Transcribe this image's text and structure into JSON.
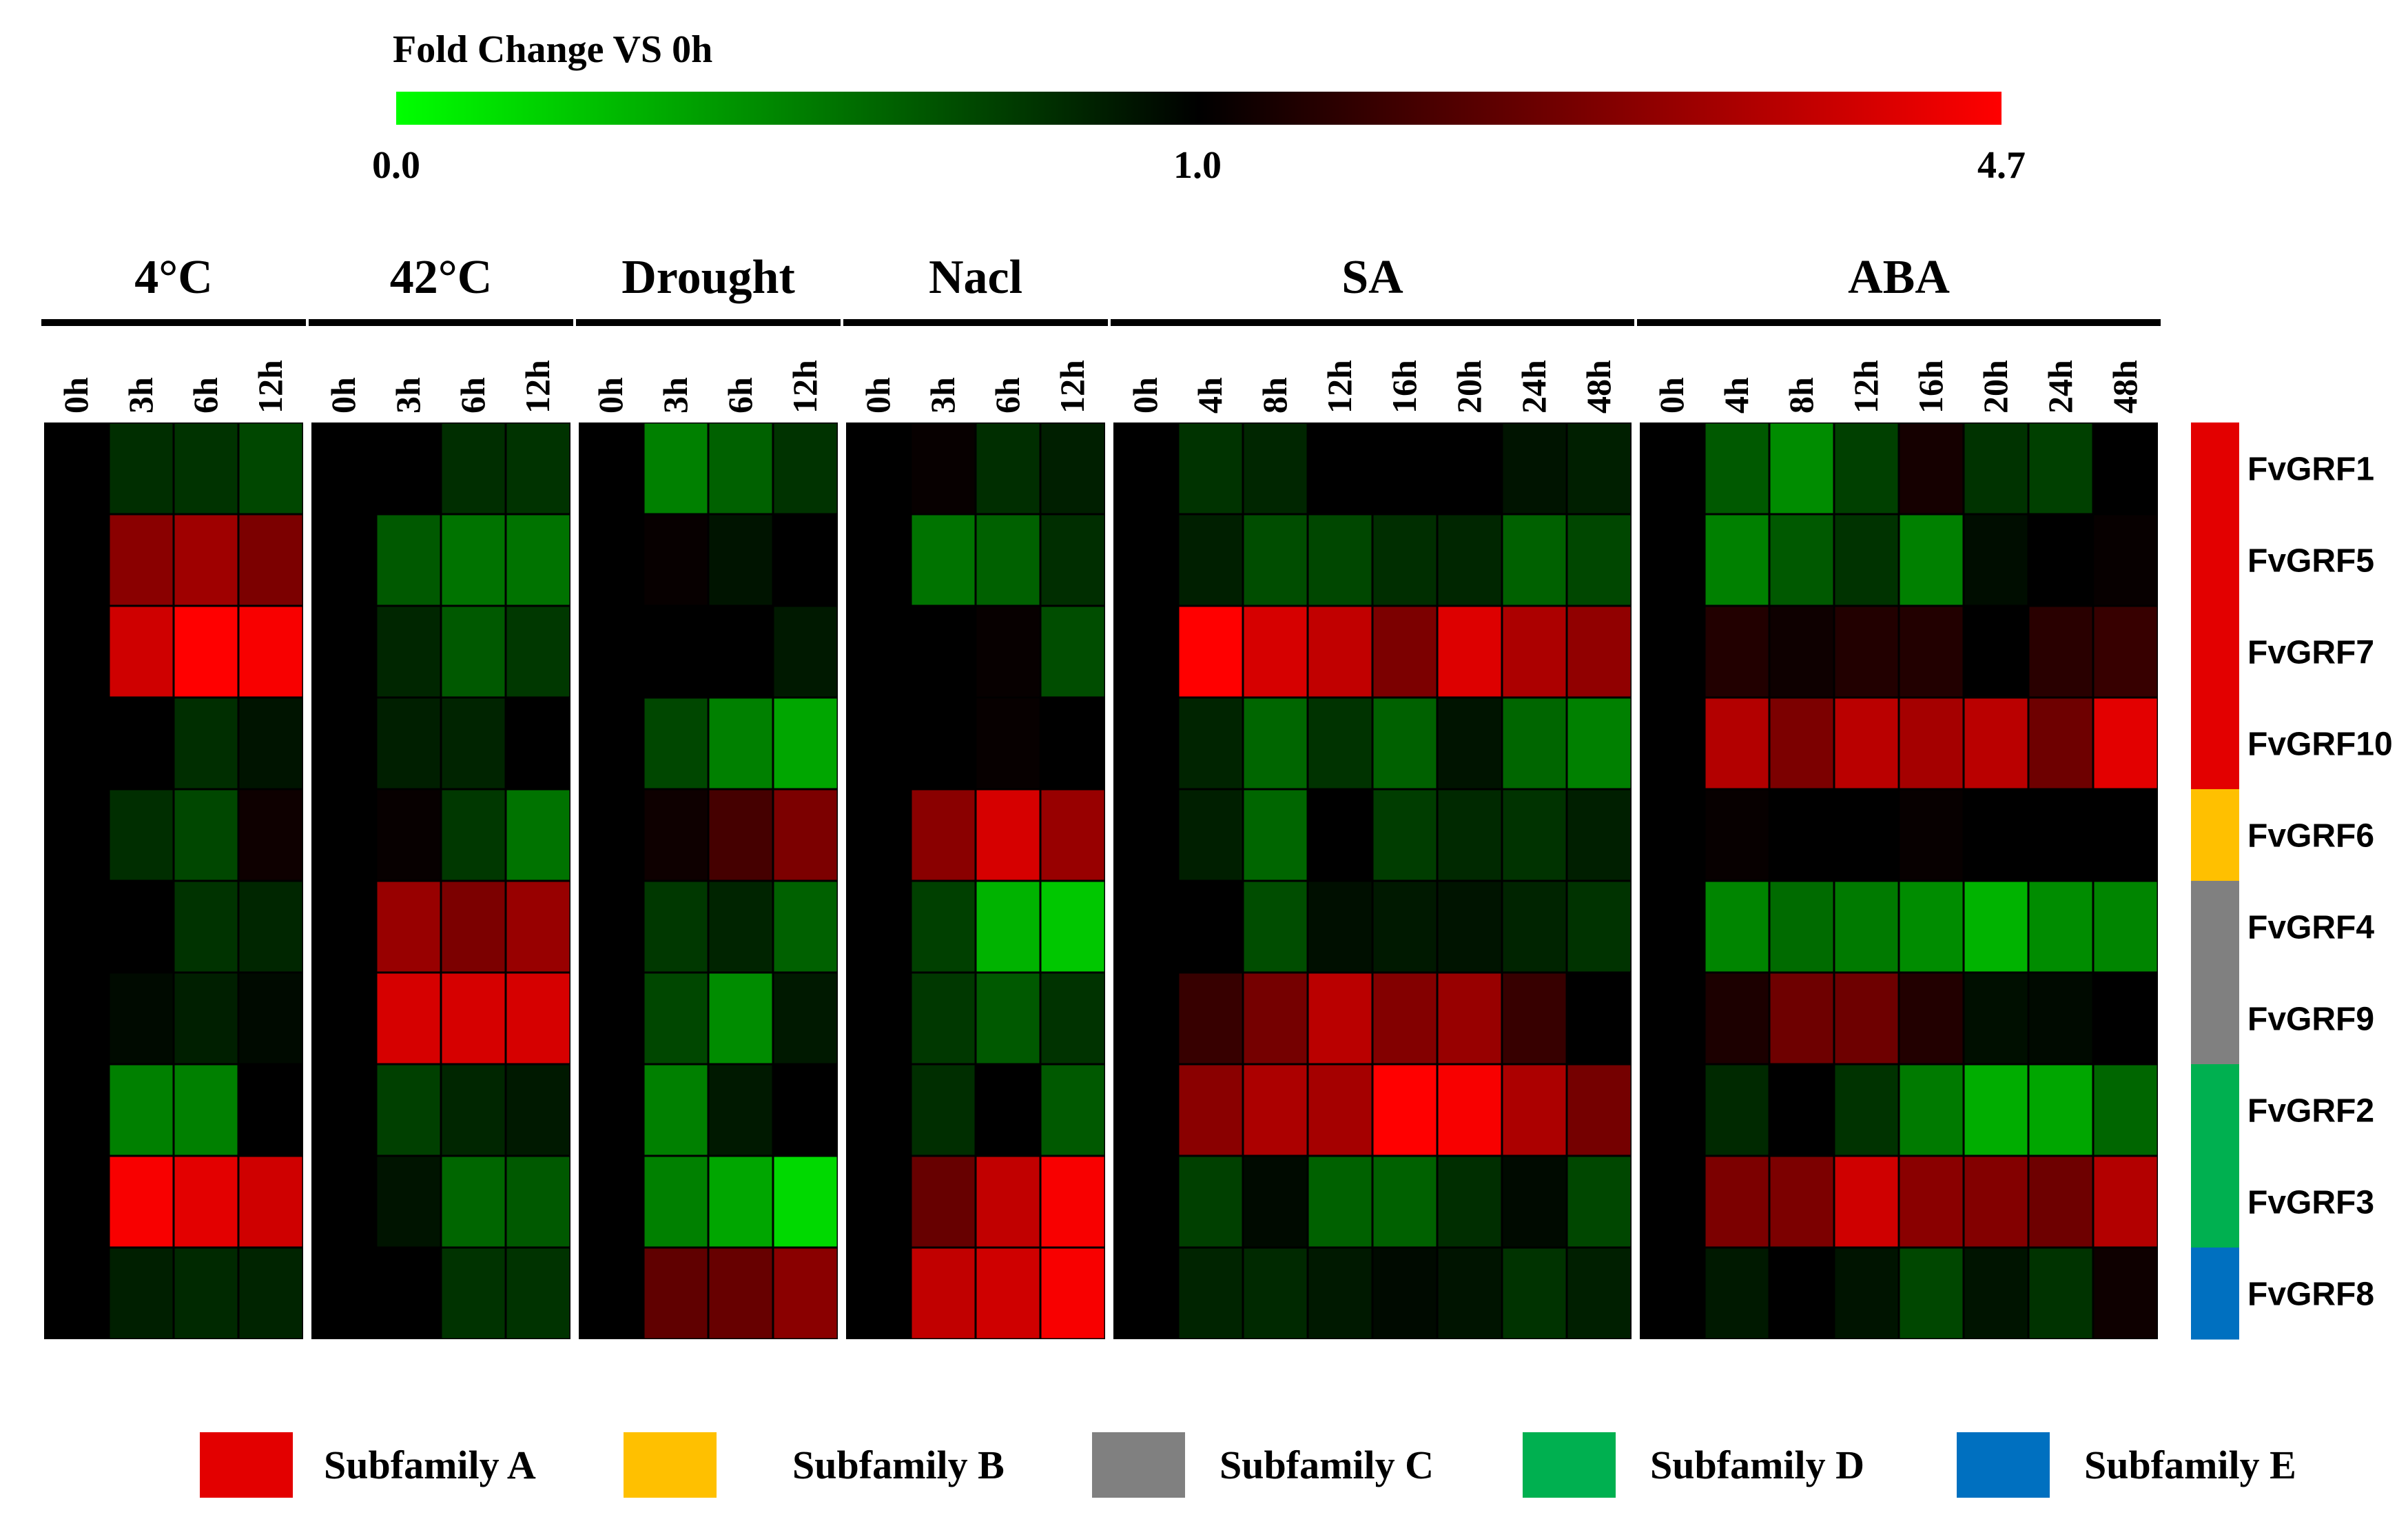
{
  "chart_data": {
    "type": "heatmap",
    "title": "",
    "colorbar": {
      "label": "Fold Change VS 0h",
      "min_label": "0.0",
      "mid_label": "1.0",
      "max_label": "4.7",
      "min": 0.0,
      "mid": 1.0,
      "max": 4.7,
      "colors": {
        "low": "#00ff00",
        "mid": "#000000",
        "high": "#ff0000"
      }
    },
    "genes": [
      "FvGRF1",
      "FvGRF5",
      "FvGRF7",
      "FvGRF10",
      "FvGRF6",
      "FvGRF4",
      "FvGRF9",
      "FvGRF2",
      "FvGRF3",
      "FvGRF8"
    ],
    "gene_subfamily": [
      "A",
      "A",
      "A",
      "A",
      "B",
      "C",
      "C",
      "D",
      "D",
      "E"
    ],
    "groups": [
      {
        "name": "4°C",
        "timepoints": [
          "0h",
          "3h",
          "6h",
          "12h"
        ],
        "values": [
          [
            1.0,
            0.82,
            0.8,
            0.72
          ],
          [
            1.0,
            3.0,
            3.3,
            2.8
          ],
          [
            1.0,
            4.0,
            4.7,
            4.6
          ],
          [
            1.0,
            1.0,
            0.82,
            0.92
          ],
          [
            1.0,
            0.82,
            0.72,
            1.2
          ],
          [
            1.0,
            1.0,
            0.8,
            0.85
          ],
          [
            1.0,
            0.96,
            0.88,
            0.96
          ],
          [
            1.0,
            0.5,
            0.5,
            1.0
          ],
          [
            1.0,
            4.6,
            4.3,
            4.0
          ],
          [
            1.0,
            0.88,
            0.84,
            0.86
          ]
        ]
      },
      {
        "name": "42°C",
        "timepoints": [
          "0h",
          "3h",
          "6h",
          "12h"
        ],
        "values": [
          [
            1.0,
            1.0,
            0.82,
            0.8
          ],
          [
            1.0,
            0.65,
            0.55,
            0.55
          ],
          [
            1.0,
            0.85,
            0.65,
            0.78
          ],
          [
            1.0,
            0.88,
            0.86,
            1.0
          ],
          [
            1.0,
            1.1,
            0.78,
            0.55
          ],
          [
            1.0,
            3.2,
            2.8,
            3.2
          ],
          [
            1.0,
            4.1,
            4.1,
            4.1
          ],
          [
            1.0,
            0.75,
            0.85,
            0.9
          ],
          [
            1.0,
            0.92,
            0.6,
            0.65
          ],
          [
            1.0,
            1.0,
            0.8,
            0.8
          ]
        ]
      },
      {
        "name": "Drought",
        "timepoints": [
          "0h",
          "3h",
          "6h",
          "12h"
        ],
        "values": [
          [
            1.0,
            0.5,
            0.62,
            0.8
          ],
          [
            1.0,
            1.1,
            0.92,
            1.0
          ],
          [
            1.0,
            1.0,
            1.0,
            0.9
          ],
          [
            1.0,
            0.72,
            0.5,
            0.35
          ],
          [
            1.0,
            1.2,
            2.0,
            2.8
          ],
          [
            1.0,
            0.78,
            0.86,
            0.62
          ],
          [
            1.0,
            0.72,
            0.45,
            0.9
          ],
          [
            1.0,
            0.5,
            0.9,
            1.0
          ],
          [
            1.0,
            0.5,
            0.35,
            0.15
          ],
          [
            1.0,
            2.4,
            2.5,
            3.0
          ]
        ]
      },
      {
        "name": "Nacl",
        "timepoints": [
          "0h",
          "3h",
          "6h",
          "12h"
        ],
        "values": [
          [
            1.0,
            1.1,
            0.82,
            0.88
          ],
          [
            1.0,
            0.55,
            0.62,
            0.82
          ],
          [
            1.0,
            1.0,
            1.1,
            0.7
          ],
          [
            1.0,
            1.0,
            1.1,
            1.0
          ],
          [
            1.0,
            3.0,
            4.1,
            3.2
          ],
          [
            1.0,
            0.75,
            0.3,
            0.22
          ],
          [
            1.0,
            0.78,
            0.65,
            0.8
          ],
          [
            1.0,
            0.82,
            1.0,
            0.65
          ],
          [
            1.0,
            2.5,
            3.8,
            4.6
          ],
          [
            1.0,
            3.8,
            4.0,
            4.6
          ]
        ]
      },
      {
        "name": "SA",
        "timepoints": [
          "0h",
          "4h",
          "8h",
          "12h",
          "16h",
          "20h",
          "24h",
          "48h"
        ],
        "values": [
          [
            1.0,
            0.8,
            0.85,
            1.0,
            1.0,
            1.0,
            0.92,
            0.88
          ],
          [
            1.0,
            0.88,
            0.7,
            0.72,
            0.82,
            0.85,
            0.62,
            0.72
          ],
          [
            1.0,
            4.7,
            4.1,
            3.8,
            2.8,
            4.2,
            3.5,
            3.1
          ],
          [
            1.0,
            0.86,
            0.6,
            0.8,
            0.62,
            0.92,
            0.6,
            0.5
          ],
          [
            1.0,
            0.88,
            0.6,
            1.0,
            0.76,
            0.84,
            0.8,
            0.88
          ],
          [
            1.0,
            1.0,
            0.7,
            0.94,
            0.9,
            0.92,
            0.86,
            0.8
          ],
          [
            1.0,
            1.8,
            2.7,
            3.7,
            2.9,
            3.2,
            1.8,
            1.0
          ],
          [
            1.0,
            3.0,
            3.5,
            3.4,
            4.7,
            4.6,
            3.5,
            2.7
          ],
          [
            1.0,
            0.75,
            0.96,
            0.62,
            0.62,
            0.82,
            0.96,
            0.72
          ],
          [
            1.0,
            0.86,
            0.84,
            0.9,
            0.96,
            0.92,
            0.8,
            0.88
          ]
        ]
      },
      {
        "name": "ABA",
        "timepoints": [
          "0h",
          "4h",
          "8h",
          "12h",
          "16h",
          "20h",
          "24h",
          "48h"
        ],
        "values": [
          [
            1.0,
            0.65,
            0.45,
            0.75,
            1.3,
            0.8,
            0.75,
            1.0
          ],
          [
            1.0,
            0.5,
            0.65,
            0.8,
            0.5,
            0.95,
            1.0,
            1.1
          ],
          [
            1.0,
            1.5,
            1.2,
            1.5,
            1.5,
            1.0,
            1.6,
            1.8
          ],
          [
            1.0,
            3.6,
            2.8,
            3.7,
            3.4,
            3.7,
            2.6,
            4.3
          ],
          [
            1.0,
            1.1,
            1.0,
            1.0,
            1.1,
            1.0,
            1.0,
            1.0
          ],
          [
            1.0,
            0.48,
            0.58,
            0.52,
            0.45,
            0.3,
            0.45,
            0.48
          ],
          [
            1.0,
            1.4,
            2.6,
            2.6,
            1.5,
            0.94,
            0.96,
            1.0
          ],
          [
            1.0,
            0.84,
            1.0,
            0.8,
            0.52,
            0.32,
            0.35,
            0.6
          ],
          [
            1.0,
            2.8,
            2.8,
            4.0,
            3.0,
            2.9,
            2.6,
            3.6
          ],
          [
            1.0,
            0.9,
            1.0,
            0.92,
            0.72,
            0.92,
            0.8,
            1.2
          ]
        ]
      }
    ],
    "legend": {
      "position": "bottom",
      "items": [
        {
          "id": "A",
          "label": "Subfamily A",
          "color": "#e30000"
        },
        {
          "id": "B",
          "label": "Subfamily B",
          "color": "#ffc000"
        },
        {
          "id": "C",
          "label": "Subfamily C",
          "color": "#808080"
        },
        {
          "id": "D",
          "label": "Subfamily D",
          "color": "#00b050"
        },
        {
          "id": "E",
          "label": "Subfamily E",
          "color": "#0070c0"
        }
      ]
    }
  }
}
